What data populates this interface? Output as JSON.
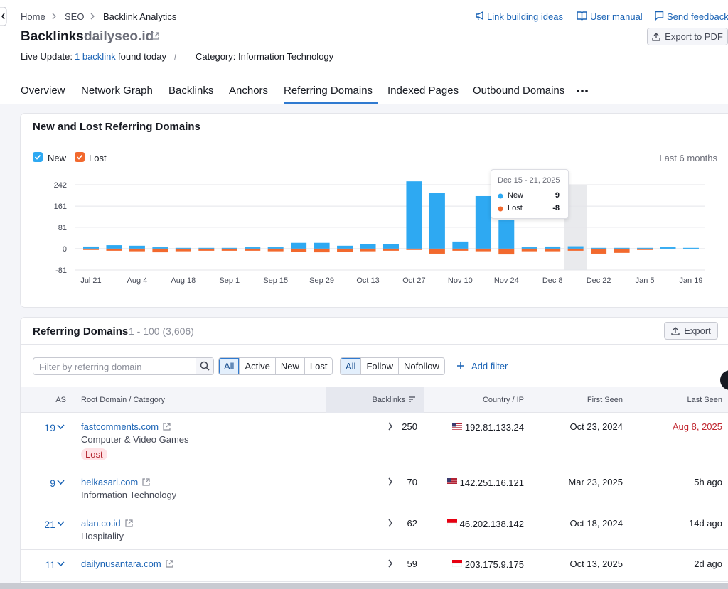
{
  "breadcrumbs": [
    "Home",
    "SEO",
    "Backlink Analytics"
  ],
  "top_links": [
    "Link building ideas",
    "User manual",
    "Send feedback"
  ],
  "title": {
    "label": "Backlinks:",
    "domain": "dailyseo.id"
  },
  "export_pdf": "Export to PDF",
  "live_update": {
    "label": "Live Update:",
    "link": "1 backlink",
    "text": "found today",
    "category": "Category: Information Technology"
  },
  "tabs": [
    "Overview",
    "Network Graph",
    "Backlinks",
    "Anchors",
    "Referring Domains",
    "Indexed Pages",
    "Outbound Domains"
  ],
  "chart_data": {
    "type": "bar",
    "title": "New and Lost Referring Domains",
    "period": "Last 6 months",
    "categories": [
      "Jul 21",
      null,
      "Aug 4",
      null,
      "Aug 18",
      null,
      "Sep 1",
      null,
      "Sep 15",
      null,
      "Sep 29",
      null,
      "Oct 13",
      null,
      "Oct 27",
      null,
      "Nov 10",
      null,
      "Nov 24",
      null,
      "Dec 8",
      null,
      "Dec 22",
      null,
      "Jan 5",
      null,
      "Jan 19"
    ],
    "series": [
      {
        "name": "New",
        "color": "#2ea9f2",
        "values": [
          8,
          13,
          11,
          5,
          3,
          3,
          3,
          5,
          5,
          22,
          22,
          11,
          16,
          16,
          255,
          212,
          27,
          199,
          110,
          5,
          8,
          9,
          3,
          3,
          3,
          5,
          3
        ]
      },
      {
        "name": "Lost",
        "color": "#f2692e",
        "values": [
          -5,
          -8,
          -10,
          -14,
          -10,
          -8,
          -8,
          -8,
          -10,
          -12,
          -14,
          -12,
          -10,
          -8,
          -5,
          -19,
          -8,
          -10,
          -22,
          -10,
          -10,
          -8,
          -19,
          -16,
          -5,
          0,
          0
        ]
      }
    ],
    "ylim": [
      -81,
      242
    ],
    "yticks": [
      -81,
      0,
      81,
      161,
      242
    ],
    "grid": true,
    "tooltip": {
      "title": "Dec 15 - 21, 2025"
    }
  },
  "table": {
    "title": "Referring Domains",
    "range": "1 - 100 (3,606)",
    "export": "Export",
    "filter_placeholder": "Filter by referring domain",
    "status_filters": [
      "All",
      "Active",
      "New",
      "Lost"
    ],
    "link_filters": [
      "All",
      "Follow",
      "Nofollow"
    ],
    "add_filter": "Add filter",
    "columns": [
      "AS",
      "Root Domain / Category",
      "Backlinks",
      "Country / IP",
      "First Seen",
      "Last Seen"
    ],
    "rows": [
      {
        "as": 19,
        "domain": "fastcomments.com",
        "category": "Computer & Video Games",
        "tag": "Lost",
        "backlinks": 250,
        "ip": "192.81.133.24",
        "first_seen": "Oct 23, 2024",
        "last_seen": "Aug 8, 2025"
      },
      {
        "as": 9,
        "domain": "helkasari.com",
        "category": "Information Technology",
        "backlinks": 70,
        "ip": "142.251.16.121",
        "first_seen": "Mar 23, 2025",
        "last_seen": "5h ago"
      },
      {
        "as": 21,
        "domain": "alan.co.id",
        "category": "Hospitality",
        "backlinks": 62,
        "ip": "46.202.138.142",
        "first_seen": "Oct 18, 2024",
        "last_seen": "14d ago"
      },
      {
        "as": 11,
        "domain": "dailynusantara.com",
        "backlinks": 59,
        "ip": "203.175.9.175",
        "first_seen": "Oct 13, 2025",
        "last_seen": "2d ago"
      }
    ]
  }
}
